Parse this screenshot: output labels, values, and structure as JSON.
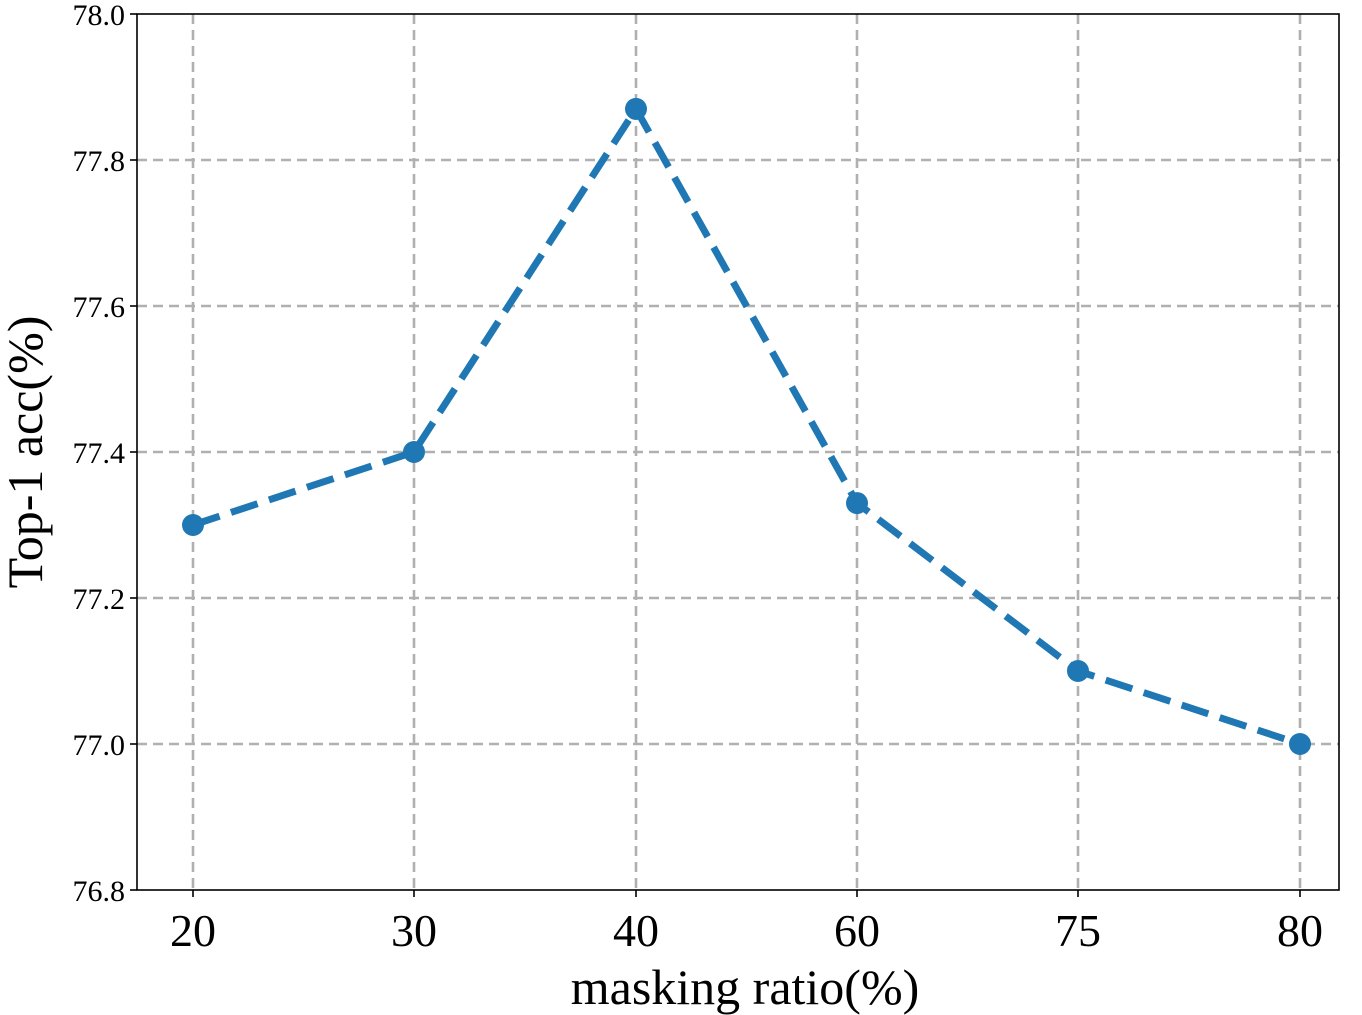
{
  "chart_data": {
    "type": "line",
    "title": "",
    "xlabel": "masking ratio(%)",
    "ylabel": "Top-1 acc(%)",
    "categories": [
      "20",
      "30",
      "40",
      "60",
      "75",
      "80"
    ],
    "y_ticks": [
      "76.8",
      "77.0",
      "77.2",
      "77.4",
      "77.6",
      "77.8",
      "78.0"
    ],
    "ylim": [
      76.8,
      78.0
    ],
    "grid": true,
    "series": [
      {
        "values": [
          77.3,
          77.4,
          77.87,
          77.33,
          77.1,
          77.0
        ],
        "color": "#1f77b4",
        "line_style": "dashed",
        "marker": "circle"
      }
    ]
  }
}
